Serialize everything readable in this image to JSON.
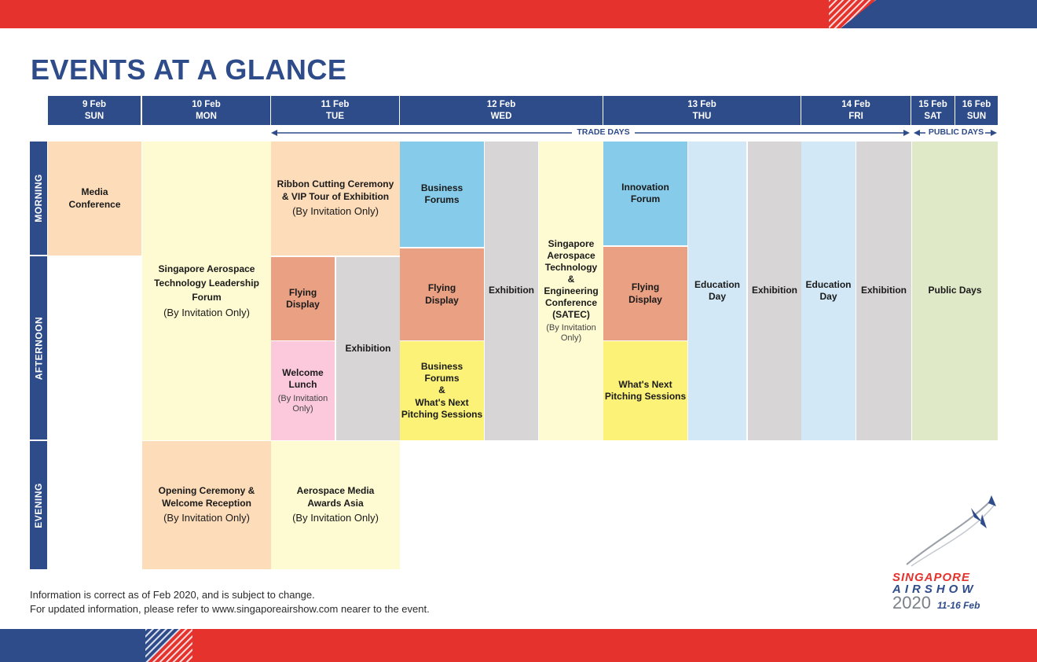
{
  "title": "EVENTS AT A GLANCE",
  "days": [
    {
      "date": "9 Feb",
      "dow": "SUN"
    },
    {
      "date": "10 Feb",
      "dow": "MON"
    },
    {
      "date": "11 Feb",
      "dow": "TUE"
    },
    {
      "date": "12 Feb",
      "dow": "WED"
    },
    {
      "date": "13 Feb",
      "dow": "THU"
    },
    {
      "date": "14 Feb",
      "dow": "FRI"
    },
    {
      "date": "15 Feb",
      "dow": "SAT"
    },
    {
      "date": "16 Feb",
      "dow": "SUN"
    }
  ],
  "ranges": {
    "trade": "TRADE DAYS",
    "public": "PUBLIC DAYS"
  },
  "sessions": {
    "morning": "MORNING",
    "afternoon": "AFTERNOON",
    "evening": "EVENING"
  },
  "events": {
    "media": {
      "title": "Media Conference"
    },
    "satlf": {
      "title": "Singapore Aerospace Technology Leadership Forum",
      "note": "(By Invitation Only)"
    },
    "opening": {
      "title": "Opening Ceremony & Welcome Reception",
      "note": "(By Invitation Only)"
    },
    "ribbon": {
      "title": "Ribbon Cutting Ceremony & VIP Tour of Exhibition",
      "note": "(By Invitation Only)"
    },
    "tue_flying": {
      "title": "Flying Display"
    },
    "tue_exhibition": {
      "title": "Exhibition"
    },
    "welcome_lunch": {
      "title": "Welcome Lunch",
      "note": "(By Invitation Only)"
    },
    "media_awards": {
      "title": "Aerospace Media Awards Asia",
      "note": "(By Invitation Only)"
    },
    "wed_business": {
      "title": "Business Forums"
    },
    "wed_flying": {
      "title": "Flying Display"
    },
    "wed_pitch": {
      "title1": "Business Forums",
      "amp": "&",
      "title2": "What's Next Pitching Sessions"
    },
    "wed_exhibition": {
      "title": "Exhibition"
    },
    "satec": {
      "title": "Singapore Aerospace Technology & Engineering Conference (SATEC)",
      "note": "(By Invitation Only)"
    },
    "thu_innovation": {
      "title": "Innovation Forum"
    },
    "thu_flying": {
      "title": "Flying Display"
    },
    "thu_pitch": {
      "title": "What's Next Pitching Sessions"
    },
    "thu_education": {
      "title": "Education Day"
    },
    "thu_exhibition": {
      "title": "Exhibition"
    },
    "fri_education": {
      "title": "Education Day"
    },
    "fri_exhibition": {
      "title": "Exhibition"
    },
    "public": {
      "title": "Public Days"
    }
  },
  "footer": {
    "line1": "Information is correct as of Feb 2020, and is subject to change.",
    "line2": "For updated information, please refer to www.singaporeairshow.com nearer to the event."
  },
  "logo": {
    "line1": "SINGAPORE",
    "line2": "AIRSHOW",
    "year": "2020",
    "dates": "11-16 Feb"
  },
  "colors": {
    "navy": "#2e4b8a",
    "red": "#e5322d"
  }
}
